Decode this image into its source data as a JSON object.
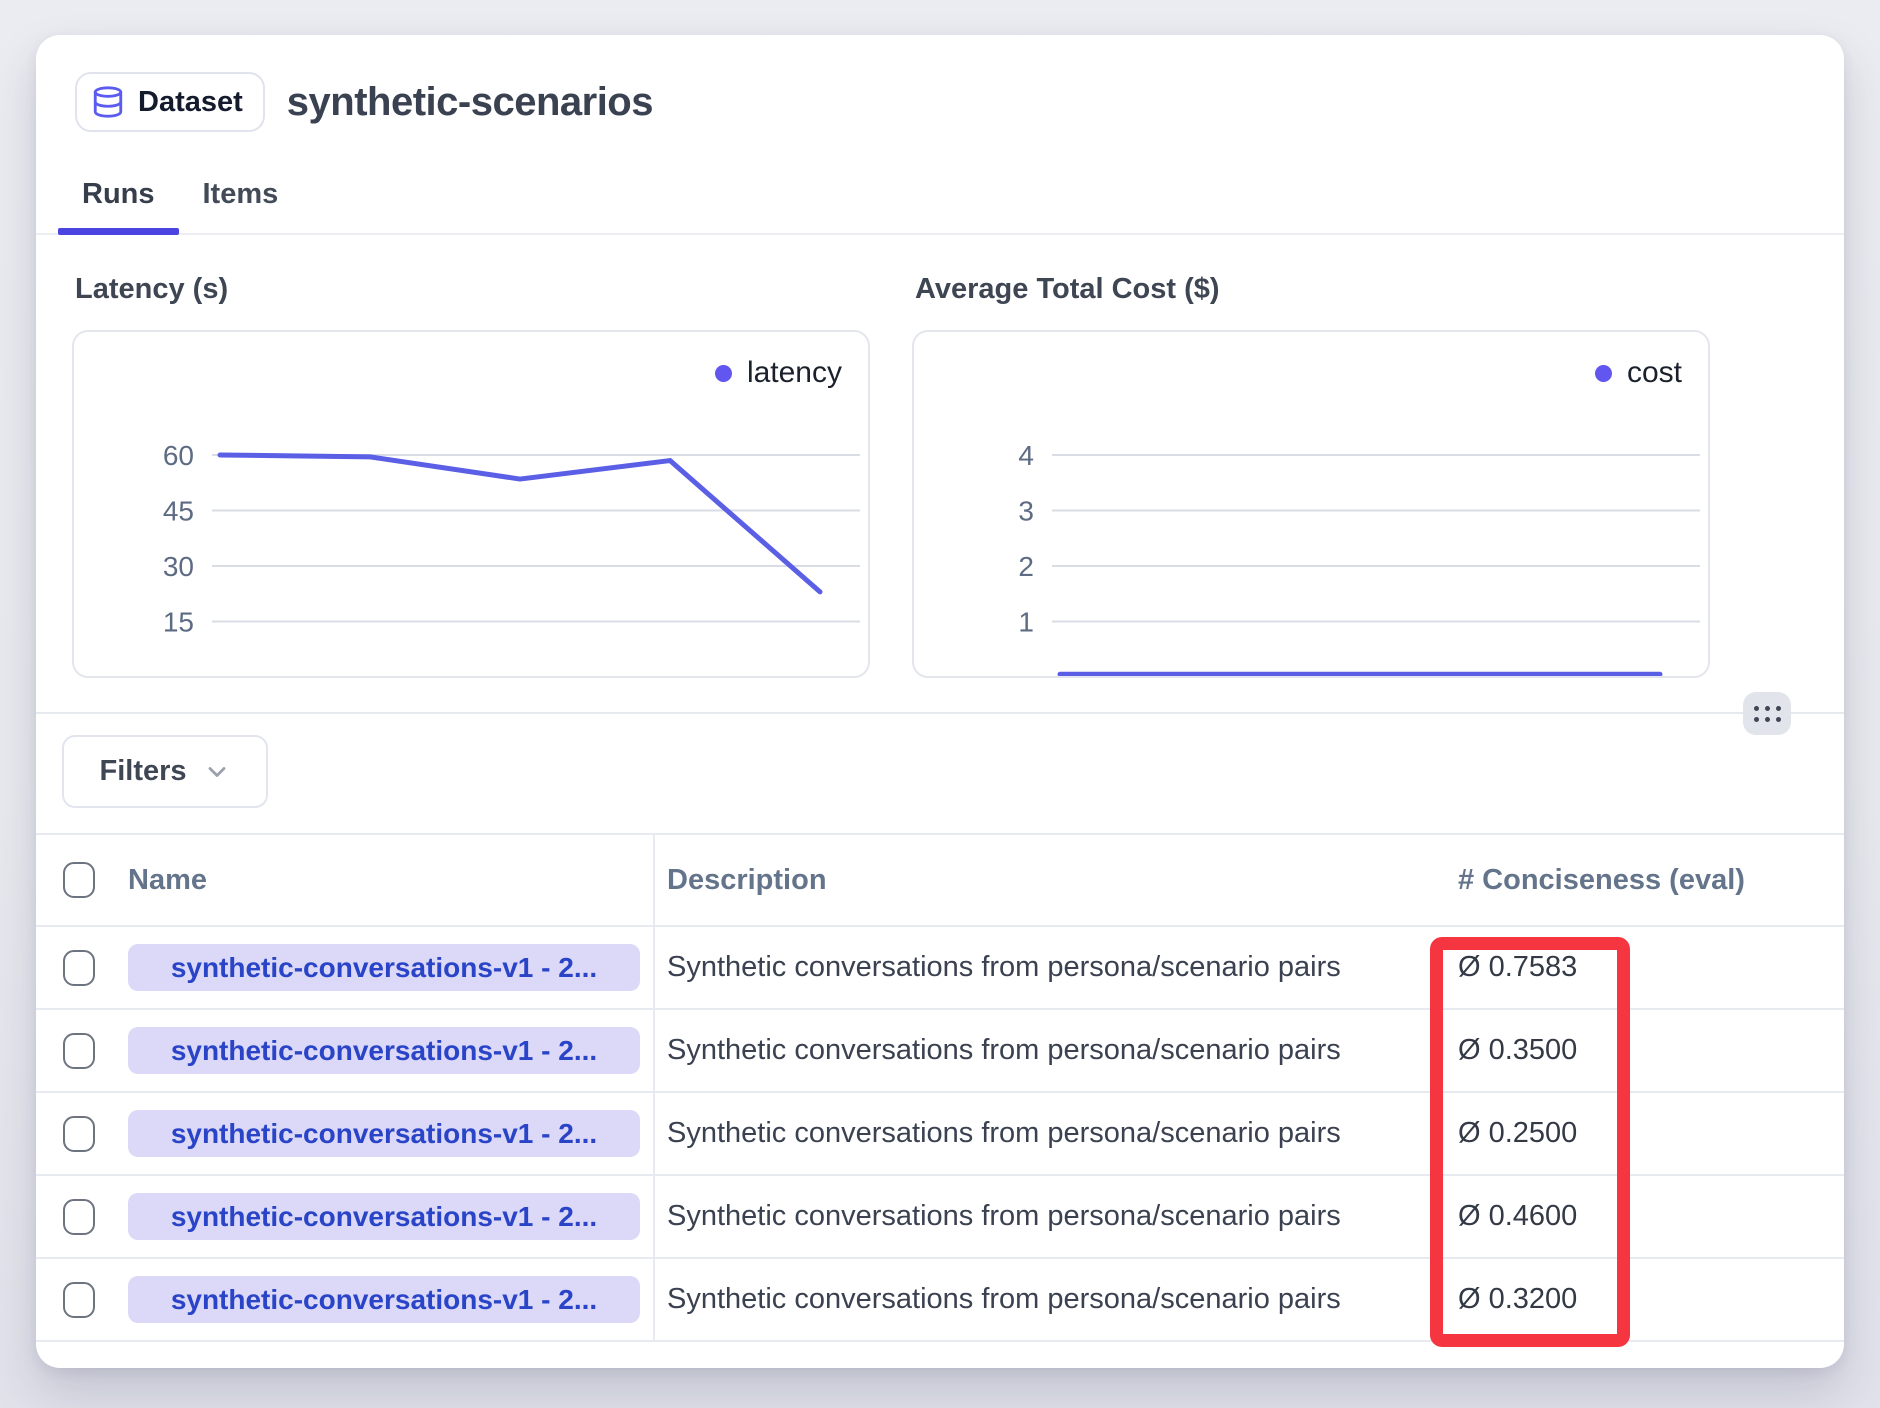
{
  "header": {
    "badge_label": "Dataset",
    "title": "synthetic-scenarios"
  },
  "tabs": [
    {
      "label": "Runs",
      "active": true
    },
    {
      "label": "Items",
      "active": false
    }
  ],
  "chart_data": [
    {
      "type": "line",
      "title": "Latency (s)",
      "legend": "latency",
      "legend_position": "top-right",
      "x_labels": [],
      "values": [
        60,
        59.5,
        53.5,
        58.5,
        23
      ],
      "yticks": [
        15,
        30,
        45,
        60
      ],
      "ylim": [
        0,
        75
      ],
      "grid": true,
      "color": "#5b5fe6"
    },
    {
      "type": "line",
      "title": "Average Total Cost ($)",
      "legend": "cost",
      "legend_position": "top-right",
      "x_labels": [],
      "values": [
        0.05,
        0.05,
        0.05,
        0.05,
        0.05
      ],
      "yticks": [
        1,
        2,
        3,
        4
      ],
      "ylim": [
        0,
        5
      ],
      "grid": true,
      "color": "#5b5fe6"
    }
  ],
  "filters": {
    "label": "Filters"
  },
  "table": {
    "columns": [
      "Name",
      "Description",
      "# Conciseness (eval)"
    ],
    "rows": [
      {
        "name": "synthetic-conversations-v1 - 2...",
        "description": "Synthetic conversations from persona/scenario pairs",
        "conciseness": "Ø 0.7583"
      },
      {
        "name": "synthetic-conversations-v1 - 2...",
        "description": "Synthetic conversations from persona/scenario pairs",
        "conciseness": "Ø 0.3500"
      },
      {
        "name": "synthetic-conversations-v1 - 2...",
        "description": "Synthetic conversations from persona/scenario pairs",
        "conciseness": "Ø 0.2500"
      },
      {
        "name": "synthetic-conversations-v1 - 2...",
        "description": "Synthetic conversations from persona/scenario pairs",
        "conciseness": "Ø 0.4600"
      },
      {
        "name": "synthetic-conversations-v1 - 2...",
        "description": "Synthetic conversations from persona/scenario pairs",
        "conciseness": "Ø 0.3200"
      }
    ]
  },
  "colors": {
    "accent": "#4b44e0",
    "legend-dot": "#6156f0",
    "db-icon": "#5b5bf0",
    "name-pill-bg": "#dbd8f8",
    "name-pill-text": "#2944c7",
    "annotation-red": "#f53540"
  }
}
